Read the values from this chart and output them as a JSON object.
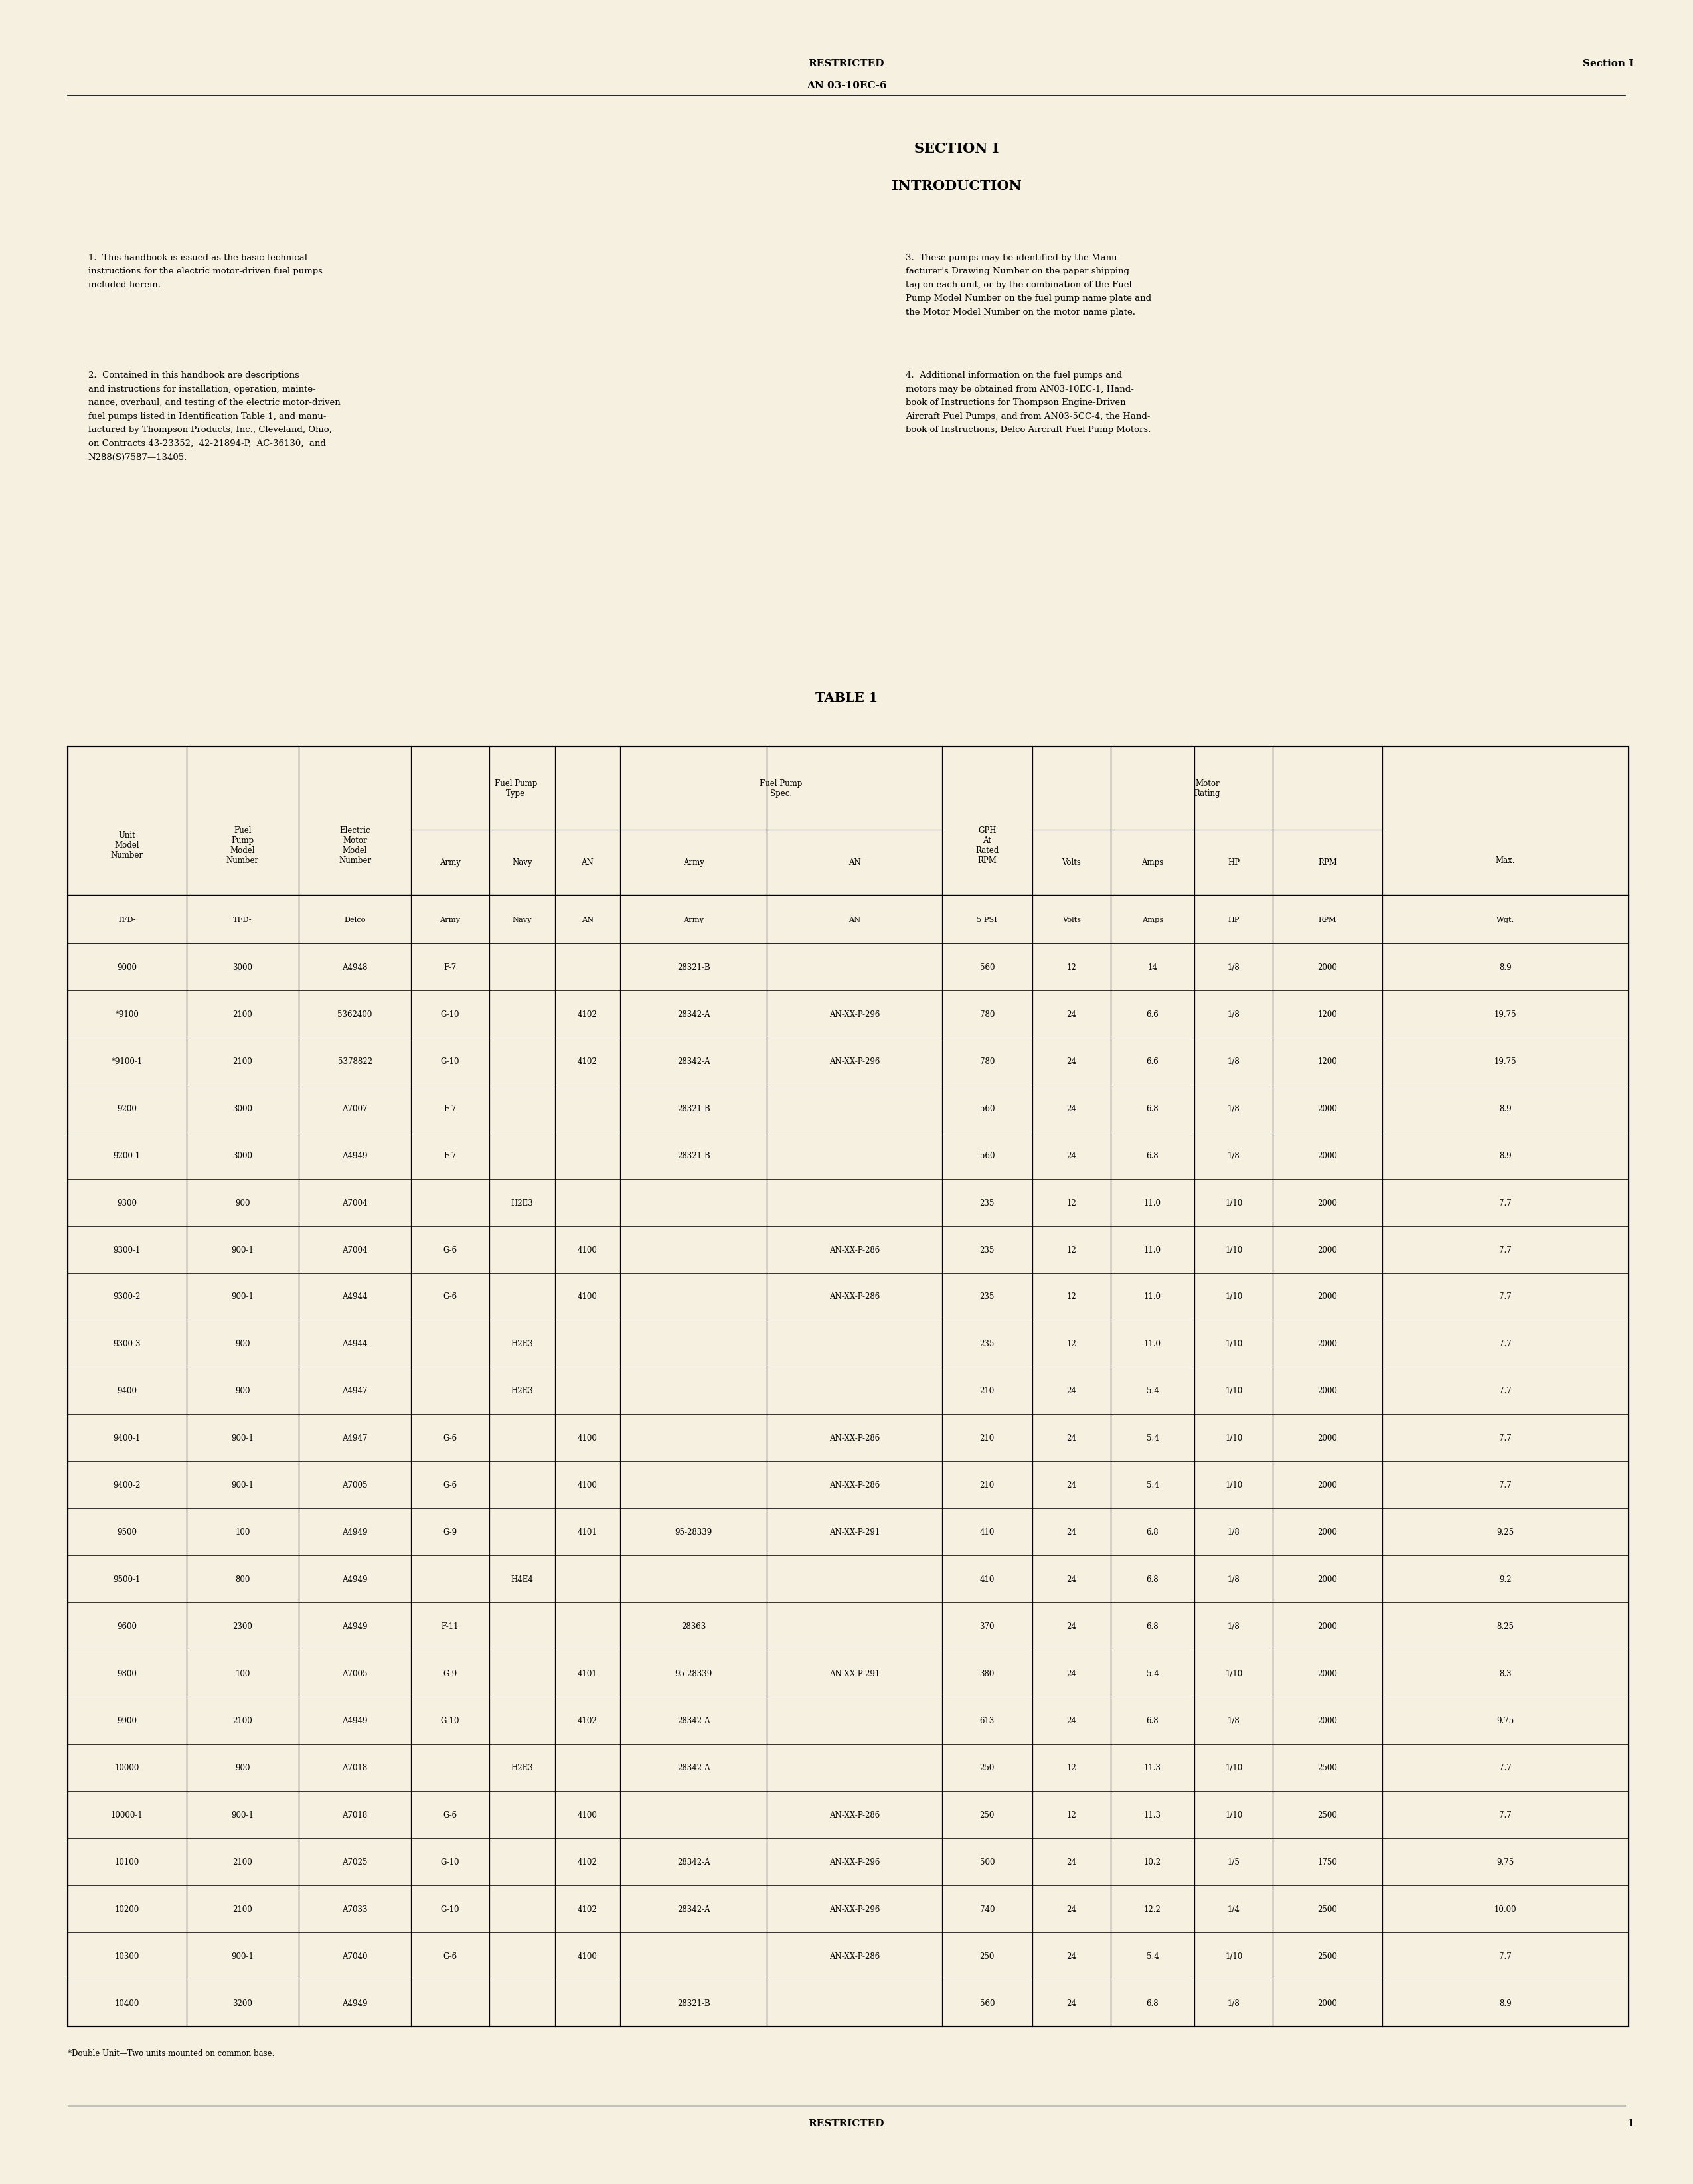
{
  "bg_color": "#f5f0e0",
  "page_width": 25.5,
  "page_height": 32.91,
  "header_restricted": "RESTRICTED",
  "header_doc": "AN 03-10EC-6",
  "header_section": "Section I",
  "section_title": "SECTION I",
  "section_subtitle": "INTRODUCTION",
  "table_title": "TABLE 1",
  "table_note": "*Double Unit—Two units mounted on common base.",
  "footer_restricted": "RESTRICTED",
  "footer_page": "1",
  "table_data": [
    [
      "9000",
      "3000",
      "A4948",
      "F-7",
      "",
      "",
      "28321-B",
      "",
      "560",
      "12",
      "14",
      "1/8",
      "2000",
      "8.9"
    ],
    [
      "*9100",
      "2100",
      "5362400",
      "G-10",
      "",
      "4102",
      "28342-A",
      "AN-XX-P-296",
      "780",
      "24",
      "6.6",
      "1/8",
      "1200",
      "19.75"
    ],
    [
      "*9100-1",
      "2100",
      "5378822",
      "G-10",
      "",
      "4102",
      "28342-A",
      "AN-XX-P-296",
      "780",
      "24",
      "6.6",
      "1/8",
      "1200",
      "19.75"
    ],
    [
      "9200",
      "3000",
      "A7007",
      "F-7",
      "",
      "",
      "28321-B",
      "",
      "560",
      "24",
      "6.8",
      "1/8",
      "2000",
      "8.9"
    ],
    [
      "9200-1",
      "3000",
      "A4949",
      "F-7",
      "",
      "",
      "28321-B",
      "",
      "560",
      "24",
      "6.8",
      "1/8",
      "2000",
      "8.9"
    ],
    [
      "9300",
      "900",
      "A7004",
      "",
      "H2E3",
      "",
      "",
      "",
      "235",
      "12",
      "11.0",
      "1/10",
      "2000",
      "7.7"
    ],
    [
      "9300-1",
      "900-1",
      "A7004",
      "G-6",
      "",
      "4100",
      "",
      "AN-XX-P-286",
      "235",
      "12",
      "11.0",
      "1/10",
      "2000",
      "7.7"
    ],
    [
      "9300-2",
      "900-1",
      "A4944",
      "G-6",
      "",
      "4100",
      "",
      "AN-XX-P-286",
      "235",
      "12",
      "11.0",
      "1/10",
      "2000",
      "7.7"
    ],
    [
      "9300-3",
      "900",
      "A4944",
      "",
      "H2E3",
      "",
      "",
      "",
      "235",
      "12",
      "11.0",
      "1/10",
      "2000",
      "7.7"
    ],
    [
      "9400",
      "900",
      "A4947",
      "",
      "H2E3",
      "",
      "",
      "",
      "210",
      "24",
      "5.4",
      "1/10",
      "2000",
      "7.7"
    ],
    [
      "9400-1",
      "900-1",
      "A4947",
      "G-6",
      "",
      "4100",
      "",
      "AN-XX-P-286",
      "210",
      "24",
      "5.4",
      "1/10",
      "2000",
      "7.7"
    ],
    [
      "9400-2",
      "900-1",
      "A7005",
      "G-6",
      "",
      "4100",
      "",
      "AN-XX-P-286",
      "210",
      "24",
      "5.4",
      "1/10",
      "2000",
      "7.7"
    ],
    [
      "9500",
      "100",
      "A4949",
      "G-9",
      "",
      "4101",
      "95-28339",
      "AN-XX-P-291",
      "410",
      "24",
      "6.8",
      "1/8",
      "2000",
      "9.25"
    ],
    [
      "9500-1",
      "800",
      "A4949",
      "",
      "H4E4",
      "",
      "",
      "",
      "410",
      "24",
      "6.8",
      "1/8",
      "2000",
      "9.2"
    ],
    [
      "9600",
      "2300",
      "A4949",
      "F-11",
      "",
      "",
      "28363",
      "",
      "370",
      "24",
      "6.8",
      "1/8",
      "2000",
      "8.25"
    ],
    [
      "9800",
      "100",
      "A7005",
      "G-9",
      "",
      "4101",
      "95-28339",
      "AN-XX-P-291",
      "380",
      "24",
      "5.4",
      "1/10",
      "2000",
      "8.3"
    ],
    [
      "9900",
      "2100",
      "A4949",
      "G-10",
      "",
      "4102",
      "28342-A",
      "",
      "613",
      "24",
      "6.8",
      "1/8",
      "2000",
      "9.75"
    ],
    [
      "10000",
      "900",
      "A7018",
      "",
      "H2E3",
      "",
      "28342-A",
      "",
      "250",
      "12",
      "11.3",
      "1/10",
      "2500",
      "7.7"
    ],
    [
      "10000-1",
      "900-1",
      "A7018",
      "G-6",
      "",
      "4100",
      "",
      "AN-XX-P-286",
      "250",
      "12",
      "11.3",
      "1/10",
      "2500",
      "7.7"
    ],
    [
      "10100",
      "2100",
      "A7025",
      "G-10",
      "",
      "4102",
      "28342-A",
      "AN-XX-P-296",
      "500",
      "24",
      "10.2",
      "1/5",
      "1750",
      "9.75"
    ],
    [
      "10200",
      "2100",
      "A7033",
      "G-10",
      "",
      "4102",
      "28342-A",
      "AN-XX-P-296",
      "740",
      "24",
      "12.2",
      "1/4",
      "2500",
      "10.00"
    ],
    [
      "10300",
      "900-1",
      "A7040",
      "G-6",
      "",
      "4100",
      "",
      "AN-XX-P-286",
      "250",
      "24",
      "5.4",
      "1/10",
      "2500",
      "7.7"
    ],
    [
      "10400",
      "3200",
      "A4949",
      "",
      "",
      "",
      "28321-B",
      "",
      "560",
      "24",
      "6.8",
      "1/8",
      "2000",
      "8.9"
    ]
  ]
}
